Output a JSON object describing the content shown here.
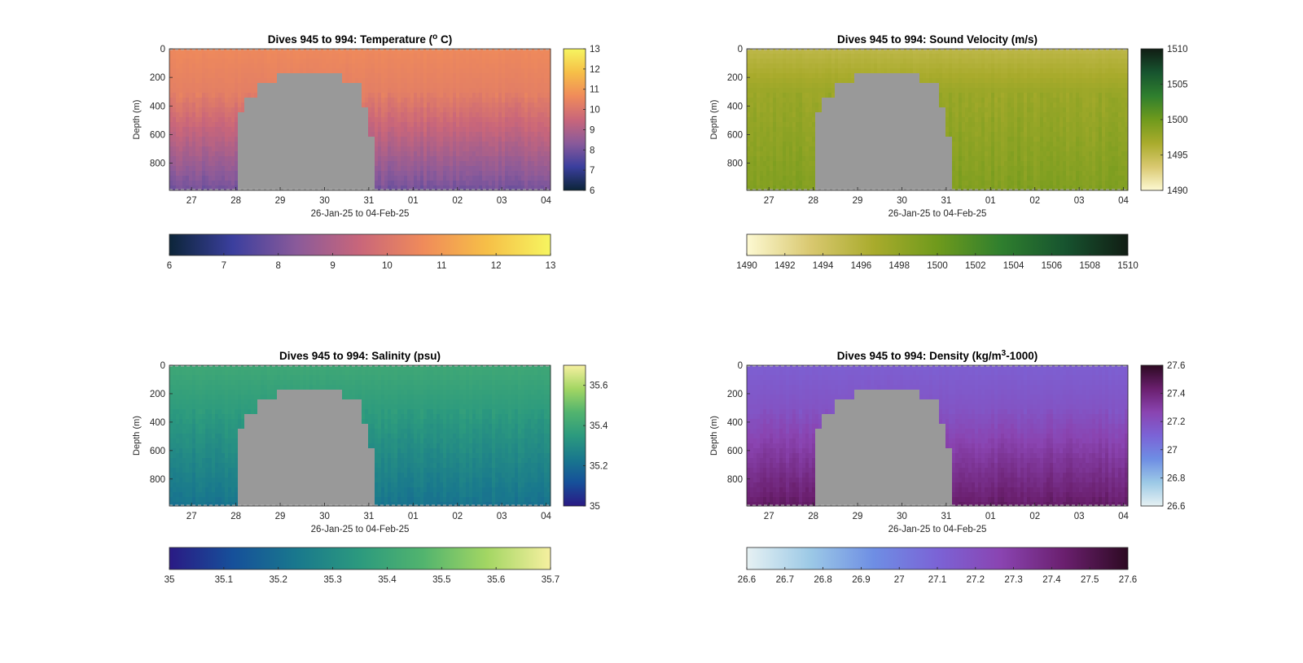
{
  "chart_data": [
    {
      "type": "heatmap",
      "title_parts": [
        "Dives 945 to 994: Temperature (",
        "o",
        " C)"
      ],
      "xlabel": "26-Jan-25 to 04-Feb-25",
      "ylabel": "Depth (m)",
      "x_ticks": [
        "27",
        "28",
        "29",
        "30",
        "31",
        "01",
        "02",
        "03",
        "04"
      ],
      "y_ticks": [
        "0",
        "200",
        "400",
        "600",
        "800"
      ],
      "x_range_days": [
        26.5,
        35.1
      ],
      "ylim": [
        0,
        990
      ],
      "no_data_color": "#999999",
      "gap_profile": [
        {
          "x": 28.05,
          "depth": 720
        },
        {
          "x": 28.2,
          "depth": 450
        },
        {
          "x": 28.5,
          "depth": 330
        },
        {
          "x": 28.9,
          "depth": 240
        },
        {
          "x": 29.3,
          "depth": 175
        },
        {
          "x": 29.9,
          "depth": 175
        },
        {
          "x": 30.4,
          "depth": 250
        },
        {
          "x": 30.8,
          "depth": 400
        },
        {
          "x": 31.0,
          "depth": 600
        },
        {
          "x": 31.15,
          "depth": 990
        }
      ],
      "colorbar": {
        "colors": [
          "#0c2539",
          "#3b3f9e",
          "#8a5a9a",
          "#c9667a",
          "#f08b5a",
          "#f6bf47",
          "#f6f560"
        ],
        "right_ticks": [
          "6",
          "7",
          "8",
          "9",
          "10",
          "11",
          "12",
          "13"
        ],
        "bottom_ticks": [
          "6",
          "7",
          "8",
          "9",
          "10",
          "11",
          "12",
          "13"
        ],
        "range": [
          6,
          13
        ]
      },
      "profile": {
        "surface": 10.6,
        "mid": 10.3,
        "deep": 8.0
      }
    },
    {
      "type": "heatmap",
      "title_parts": [
        "Dives 945 to 994: Sound Velocity (m/s)"
      ],
      "xlabel": "26-Jan-25 to 04-Feb-25",
      "ylabel": "Depth (m)",
      "x_ticks": [
        "27",
        "28",
        "29",
        "30",
        "31",
        "01",
        "02",
        "03",
        "04"
      ],
      "y_ticks": [
        "0",
        "200",
        "400",
        "600",
        "800"
      ],
      "x_range_days": [
        26.5,
        35.1
      ],
      "ylim": [
        0,
        990
      ],
      "no_data_color": "#999999",
      "gap_profile": [
        {
          "x": 28.05,
          "depth": 720
        },
        {
          "x": 28.2,
          "depth": 450
        },
        {
          "x": 28.5,
          "depth": 330
        },
        {
          "x": 28.9,
          "depth": 240
        },
        {
          "x": 29.3,
          "depth": 175
        },
        {
          "x": 29.9,
          "depth": 175
        },
        {
          "x": 30.4,
          "depth": 250
        },
        {
          "x": 30.8,
          "depth": 400
        },
        {
          "x": 31.0,
          "depth": 600
        },
        {
          "x": 31.15,
          "depth": 990
        }
      ],
      "colorbar": {
        "colors": [
          "#fdf9d2",
          "#d9c870",
          "#a9ab2c",
          "#6f9a1c",
          "#2f7f2e",
          "#17542f",
          "#111d14"
        ],
        "right_ticks": [
          "1510",
          "1505",
          "1500",
          "1495",
          "1490"
        ],
        "bottom_ticks": [
          "1490",
          "1492",
          "1494",
          "1496",
          "1498",
          "1500",
          "1502",
          "1504",
          "1506",
          "1508",
          "1510"
        ],
        "range": [
          1490,
          1510
        ]
      },
      "profile": {
        "surface": 1495.3,
        "mid": 1497.5,
        "deep": 1499.0
      }
    },
    {
      "type": "heatmap",
      "title_parts": [
        "Dives 945 to 994: Salinity (psu)"
      ],
      "xlabel": "26-Jan-25 to 04-Feb-25",
      "ylabel": "Depth (m)",
      "x_ticks": [
        "27",
        "28",
        "29",
        "30",
        "31",
        "01",
        "02",
        "03",
        "04"
      ],
      "y_ticks": [
        "0",
        "200",
        "400",
        "600",
        "800"
      ],
      "x_range_days": [
        26.5,
        35.1
      ],
      "ylim": [
        0,
        990
      ],
      "no_data_color": "#999999",
      "gap_profile": [
        {
          "x": 28.05,
          "depth": 720
        },
        {
          "x": 28.2,
          "depth": 450
        },
        {
          "x": 28.5,
          "depth": 330
        },
        {
          "x": 28.9,
          "depth": 240
        },
        {
          "x": 29.3,
          "depth": 175
        },
        {
          "x": 29.9,
          "depth": 175
        },
        {
          "x": 30.4,
          "depth": 250
        },
        {
          "x": 30.8,
          "depth": 400
        },
        {
          "x": 31.0,
          "depth": 600
        },
        {
          "x": 31.15,
          "depth": 990
        }
      ],
      "colorbar": {
        "colors": [
          "#2a1a84",
          "#16509a",
          "#19788d",
          "#2c9a7e",
          "#52b46e",
          "#a3d663",
          "#f6f0a0"
        ],
        "right_ticks": [
          "35.6",
          "35.4",
          "35.2",
          "35"
        ],
        "bottom_ticks": [
          "35",
          "35.1",
          "35.2",
          "35.3",
          "35.4",
          "35.5",
          "35.6",
          "35.7"
        ],
        "range": [
          35,
          35.7
        ]
      },
      "profile": {
        "surface": 35.41,
        "mid": 35.36,
        "deep": 35.22
      }
    },
    {
      "type": "heatmap",
      "title_parts": [
        "Dives 945 to 994: Density (kg/m",
        "3",
        "-1000)"
      ],
      "xlabel": "26-Jan-25 to 04-Feb-25",
      "ylabel": "Depth (m)",
      "x_ticks": [
        "27",
        "28",
        "29",
        "30",
        "31",
        "01",
        "02",
        "03",
        "04"
      ],
      "y_ticks": [
        "0",
        "200",
        "400",
        "600",
        "800"
      ],
      "x_range_days": [
        26.5,
        35.1
      ],
      "ylim": [
        0,
        990
      ],
      "no_data_color": "#999999",
      "gap_profile": [
        {
          "x": 28.05,
          "depth": 720
        },
        {
          "x": 28.2,
          "depth": 450
        },
        {
          "x": 28.5,
          "depth": 330
        },
        {
          "x": 28.9,
          "depth": 240
        },
        {
          "x": 29.3,
          "depth": 175
        },
        {
          "x": 29.9,
          "depth": 175
        },
        {
          "x": 30.4,
          "depth": 250
        },
        {
          "x": 30.8,
          "depth": 400
        },
        {
          "x": 31.0,
          "depth": 600
        },
        {
          "x": 31.15,
          "depth": 990
        }
      ],
      "colorbar": {
        "colors": [
          "#e6f1f3",
          "#9cc9e6",
          "#6e8ee4",
          "#7b63d6",
          "#8a44b1",
          "#6a1f6e",
          "#2d0a22"
        ],
        "right_ticks": [
          "27.6",
          "27.4",
          "27.2",
          "27",
          "26.8",
          "26.6"
        ],
        "bottom_ticks": [
          "26.6",
          "26.7",
          "26.8",
          "26.9",
          "27",
          "27.1",
          "27.2",
          "27.3",
          "27.4",
          "27.5",
          "27.6"
        ],
        "range": [
          26.6,
          27.6
        ]
      },
      "profile": {
        "surface": 27.12,
        "mid": 27.18,
        "deep": 27.45
      }
    }
  ]
}
